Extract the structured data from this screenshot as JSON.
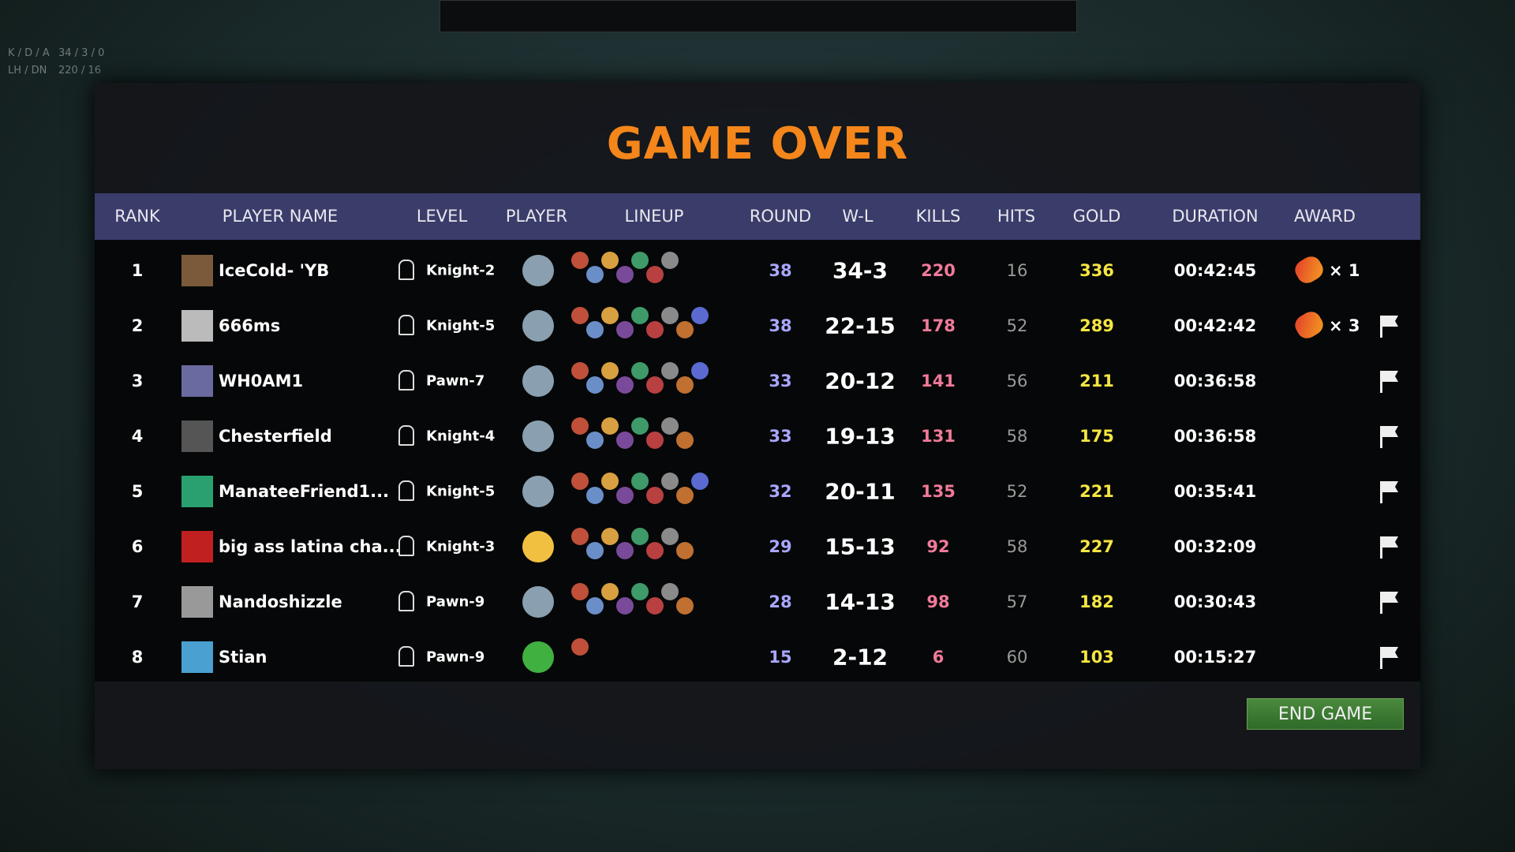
{
  "hud": {
    "kda_label": "K / D / A",
    "kda": "34 / 3 / 0",
    "lhdn_label": "LH / DN",
    "lhdn": "220 / 16"
  },
  "title": "GAME OVER",
  "table": {
    "headers": [
      "RANK",
      "PLAYER NAME",
      "LEVEL",
      "PLAYER",
      "LINEUP",
      "ROUND",
      "W-L",
      "KILLS",
      "HITS",
      "GOLD",
      "DURATION",
      "AWARD"
    ],
    "rows": [
      {
        "rank": 1,
        "name": "IceCold- 'YB",
        "level": "Knight-2",
        "round": 38,
        "wl": "34-3",
        "kills": 220,
        "hits": 16,
        "gold": 336,
        "duration": "00:42:45",
        "award": "× 1"
      },
      {
        "rank": 2,
        "name": "666ms",
        "level": "Knight-5",
        "round": 38,
        "wl": "22-15",
        "kills": 178,
        "hits": 52,
        "gold": 289,
        "duration": "00:42:42",
        "award": "× 3"
      },
      {
        "rank": 3,
        "name": "WH0AM1",
        "level": "Pawn-7",
        "round": 33,
        "wl": "20-12",
        "kills": 141,
        "hits": 56,
        "gold": 211,
        "duration": "00:36:58",
        "award": null
      },
      {
        "rank": 4,
        "name": "Chesterfield",
        "level": "Knight-4",
        "round": 33,
        "wl": "19-13",
        "kills": 131,
        "hits": 58,
        "gold": 175,
        "duration": "00:36:58",
        "award": null
      },
      {
        "rank": 5,
        "name": "ManateeFriend1...",
        "level": "Knight-5",
        "round": 32,
        "wl": "20-11",
        "kills": 135,
        "hits": 52,
        "gold": 221,
        "duration": "00:35:41",
        "award": null
      },
      {
        "rank": 6,
        "name": "big ass latina cha...",
        "level": "Knight-3",
        "round": 29,
        "wl": "15-13",
        "kills": 92,
        "hits": 58,
        "gold": 227,
        "duration": "00:32:09",
        "award": null
      },
      {
        "rank": 7,
        "name": "Nandoshizzle",
        "level": "Pawn-9",
        "round": 28,
        "wl": "14-13",
        "kills": 98,
        "hits": 57,
        "gold": 182,
        "duration": "00:30:43",
        "award": null
      },
      {
        "rank": 8,
        "name": "Stian",
        "level": "Pawn-9",
        "round": 15,
        "wl": "2-12",
        "kills": 6,
        "hits": 60,
        "gold": 103,
        "duration": "00:15:27",
        "award": null
      }
    ]
  },
  "button": "END GAME"
}
